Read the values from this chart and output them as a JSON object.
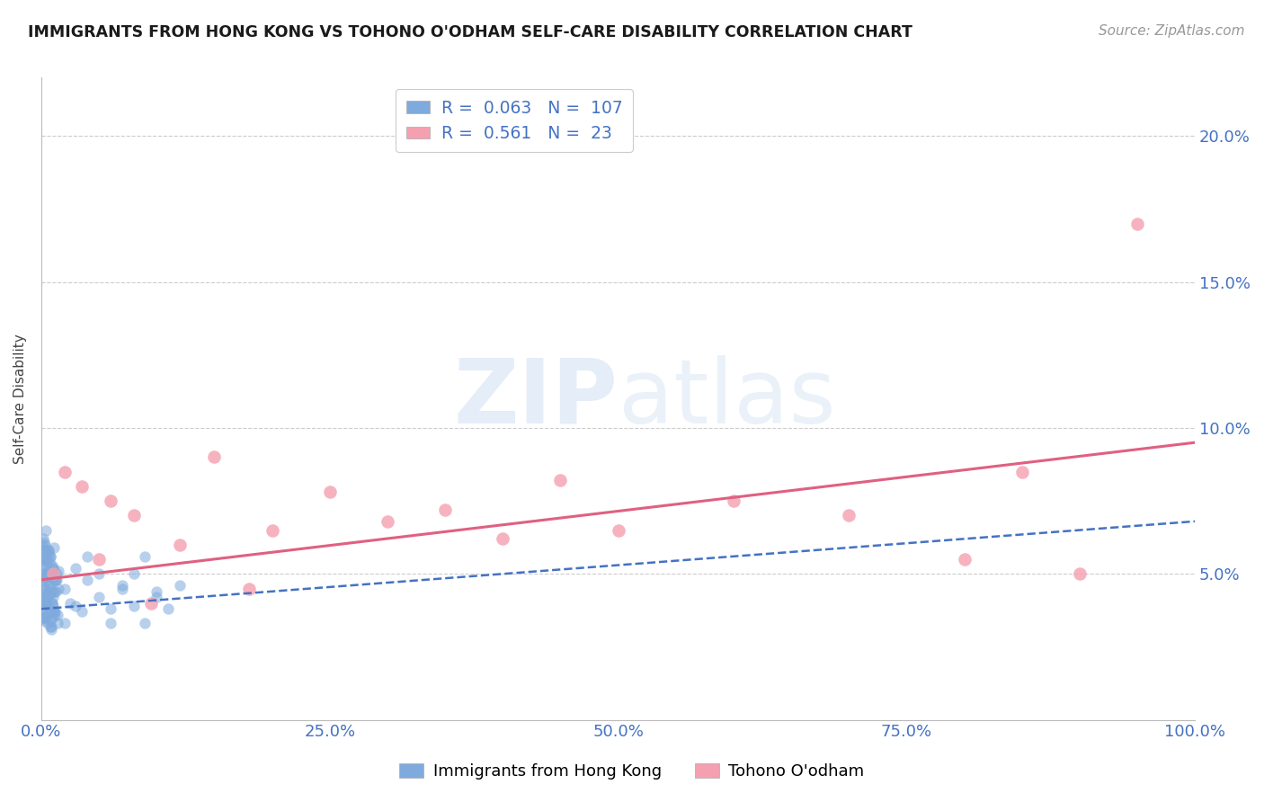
{
  "title": "IMMIGRANTS FROM HONG KONG VS TOHONO O'ODHAM SELF-CARE DISABILITY CORRELATION CHART",
  "source_text": "Source: ZipAtlas.com",
  "ylabel": "Self-Care Disability",
  "x_tick_labels": [
    "0.0%",
    "25.0%",
    "50.0%",
    "75.0%",
    "100.0%"
  ],
  "x_tick_values": [
    0.0,
    25.0,
    50.0,
    75.0,
    100.0
  ],
  "y_tick_labels": [
    "5.0%",
    "10.0%",
    "15.0%",
    "20.0%"
  ],
  "y_tick_values": [
    5.0,
    10.0,
    15.0,
    20.0
  ],
  "xlim": [
    0,
    100
  ],
  "ylim": [
    0,
    22
  ],
  "blue_R": 0.063,
  "blue_N": 107,
  "pink_R": 0.561,
  "pink_N": 23,
  "blue_label": "Immigrants from Hong Kong",
  "pink_label": "Tohono O'odham",
  "blue_color": "#7faadd",
  "pink_color": "#f4a0b0",
  "blue_line_color": "#4472c4",
  "pink_line_color": "#e06080",
  "watermark_zip": "ZIP",
  "watermark_atlas": "atlas",
  "background_color": "#ffffff",
  "blue_scatter_x": [
    0.05,
    0.08,
    0.1,
    0.1,
    0.1,
    0.12,
    0.15,
    0.15,
    0.18,
    0.2,
    0.2,
    0.2,
    0.22,
    0.25,
    0.25,
    0.28,
    0.3,
    0.3,
    0.3,
    0.35,
    0.35,
    0.38,
    0.4,
    0.4,
    0.4,
    0.45,
    0.45,
    0.48,
    0.5,
    0.5,
    0.5,
    0.55,
    0.55,
    0.58,
    0.6,
    0.6,
    0.65,
    0.65,
    0.68,
    0.7,
    0.7,
    0.75,
    0.75,
    0.78,
    0.8,
    0.8,
    0.85,
    0.85,
    0.88,
    0.9,
    0.9,
    0.95,
    0.95,
    0.98,
    1.0,
    1.0,
    1.05,
    1.05,
    1.08,
    1.1,
    1.1,
    1.15,
    1.15,
    1.2,
    1.25,
    1.25,
    1.3,
    1.4,
    1.5,
    1.5,
    2.0,
    2.5,
    3.0,
    3.5,
    4.0,
    5.0,
    6.0,
    7.0,
    8.0,
    9.0,
    10.0,
    11.0,
    12.0,
    0.2,
    0.25,
    0.3,
    0.4,
    0.5,
    0.6,
    0.7,
    0.8,
    0.9,
    1.0,
    1.1,
    1.2,
    1.3,
    1.4,
    2.0,
    3.0,
    4.0,
    5.0,
    6.0,
    7.0,
    8.0,
    9.0,
    10.0,
    0.35
  ],
  "blue_scatter_y": [
    5.8,
    5.3,
    3.5,
    5.5,
    6.0,
    3.8,
    4.0,
    6.2,
    4.6,
    4.0,
    4.5,
    5.8,
    6.1,
    3.4,
    4.9,
    3.5,
    4.2,
    5.5,
    6.0,
    4.3,
    5.6,
    4.2,
    3.8,
    5.2,
    6.5,
    4.3,
    5.5,
    5.4,
    4.2,
    5.0,
    5.8,
    3.3,
    5.1,
    3.9,
    5.0,
    5.8,
    4.7,
    5.7,
    4.6,
    4.3,
    5.4,
    5.6,
    4.5,
    3.7,
    3.2,
    5.6,
    3.1,
    4.9,
    3.2,
    4.0,
    5.3,
    4.9,
    3.5,
    4.4,
    3.9,
    5.2,
    4.2,
    5.1,
    5.9,
    3.7,
    4.4,
    3.6,
    4.8,
    3.7,
    4.4,
    4.8,
    4.8,
    3.6,
    4.5,
    5.1,
    3.3,
    4.0,
    5.2,
    3.7,
    4.8,
    5.0,
    3.3,
    4.5,
    3.9,
    5.6,
    4.2,
    3.8,
    4.6,
    4.6,
    3.5,
    4.9,
    4.0,
    3.6,
    5.8,
    4.3,
    3.4,
    4.0,
    5.2,
    3.7,
    4.8,
    5.0,
    3.3,
    4.5,
    3.9,
    5.6,
    4.2,
    3.8,
    4.6,
    5.0,
    3.3,
    4.4,
    5.0
  ],
  "pink_scatter_x": [
    1.0,
    2.0,
    3.5,
    5.0,
    6.0,
    8.0,
    9.5,
    12.0,
    15.0,
    18.0,
    20.0,
    25.0,
    30.0,
    35.0,
    40.0,
    45.0,
    50.0,
    60.0,
    70.0,
    80.0,
    85.0,
    90.0,
    95.0
  ],
  "pink_scatter_y": [
    5.0,
    8.5,
    8.0,
    5.5,
    7.5,
    7.0,
    4.0,
    6.0,
    9.0,
    4.5,
    6.5,
    7.8,
    6.8,
    7.2,
    6.2,
    8.2,
    6.5,
    7.5,
    7.0,
    5.5,
    8.5,
    5.0,
    17.0
  ],
  "blue_trendline_x": [
    0.0,
    100.0
  ],
  "blue_trendline_y": [
    3.8,
    6.8
  ],
  "pink_trendline_x": [
    0.0,
    100.0
  ],
  "pink_trendline_y": [
    4.8,
    9.5
  ]
}
